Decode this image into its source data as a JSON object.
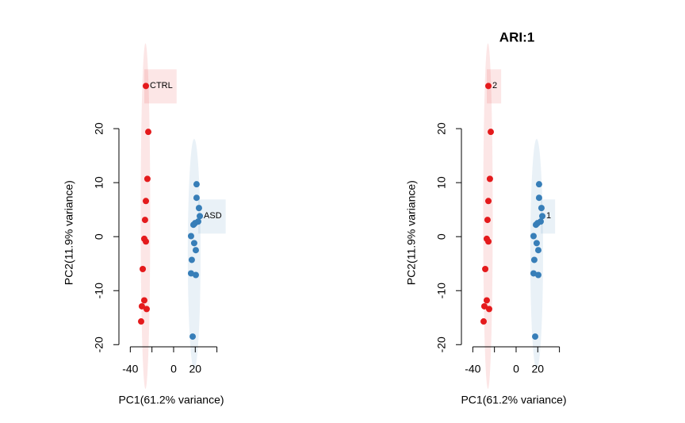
{
  "chart_data": [
    {
      "type": "scatter",
      "xlabel": "PC1(61.2% variance)",
      "ylabel": "PC2(11.9% variance)",
      "xlim": [
        -50.5,
        52
      ],
      "ylim": [
        -20.4,
        32.8
      ],
      "xticks": [
        -40,
        0,
        20
      ],
      "minor_xticks": [
        -20,
        40
      ],
      "yticks": [
        -20,
        -10,
        0,
        10,
        20
      ],
      "series": [
        {
          "name": "CTRL",
          "color": "#e41a1c",
          "x": [
            -25.6,
            -23.4,
            -24.2,
            -25.6,
            -26.4,
            -27.1,
            -25.6,
            -28.5,
            -27.1,
            -29.3,
            -24.9,
            -30.0
          ],
          "values": [
            27.9,
            19.4,
            10.7,
            6.6,
            3.1,
            -0.4,
            -0.9,
            -6.0,
            -11.8,
            -12.9,
            -13.4,
            -15.7
          ],
          "ellipse": {
            "cx": -26,
            "cy": 3.8,
            "rx": 4.4,
            "ry": 32
          }
        },
        {
          "name": "ASD",
          "color": "#377eb8",
          "x": [
            21.2,
            21.2,
            23.4,
            24.2,
            22.7,
            19.8,
            18.3,
            16.1,
            19.0,
            20.5,
            16.8,
            16.1,
            20.5,
            17.6
          ],
          "values": [
            9.7,
            7.2,
            5.3,
            3.8,
            2.8,
            2.5,
            2.2,
            0.1,
            -1.2,
            -2.5,
            -4.3,
            -6.8,
            -7.1,
            -18.5
          ],
          "ellipse": {
            "cx": 19,
            "cy": -3.2,
            "rx": 5.9,
            "ry": 21.3
          }
        }
      ]
    },
    {
      "type": "scatter",
      "title": "ARI:1",
      "xlabel": "PC1(61.2% variance)",
      "ylabel": "PC2(11.9% variance)",
      "xlim": [
        -50.5,
        52
      ],
      "ylim": [
        -20.4,
        32.8
      ],
      "xticks": [
        -40,
        0,
        20
      ],
      "minor_xticks": [
        -20,
        40
      ],
      "yticks": [
        -20,
        -10,
        0,
        10,
        20
      ],
      "series": [
        {
          "name": "2",
          "color": "#e41a1c",
          "x": [
            -25.6,
            -23.4,
            -24.2,
            -25.6,
            -26.4,
            -27.1,
            -25.6,
            -28.5,
            -27.1,
            -29.3,
            -24.9,
            -30.0
          ],
          "values": [
            27.9,
            19.4,
            10.7,
            6.6,
            3.1,
            -0.4,
            -0.9,
            -6.0,
            -11.8,
            -12.9,
            -13.4,
            -15.7
          ],
          "ellipse": {
            "cx": -26,
            "cy": 3.8,
            "rx": 4.4,
            "ry": 32
          }
        },
        {
          "name": "1",
          "color": "#377eb8",
          "x": [
            21.2,
            21.2,
            23.4,
            24.2,
            22.7,
            19.8,
            18.3,
            16.1,
            19.0,
            20.5,
            16.8,
            16.1,
            20.5,
            17.6
          ],
          "values": [
            9.7,
            7.2,
            5.3,
            3.8,
            2.8,
            2.5,
            2.2,
            0.1,
            -1.2,
            -2.5,
            -4.3,
            -6.8,
            -7.1,
            -18.5
          ],
          "ellipse": {
            "cx": 19,
            "cy": -3.2,
            "rx": 5.9,
            "ry": 21.3
          }
        }
      ]
    }
  ]
}
